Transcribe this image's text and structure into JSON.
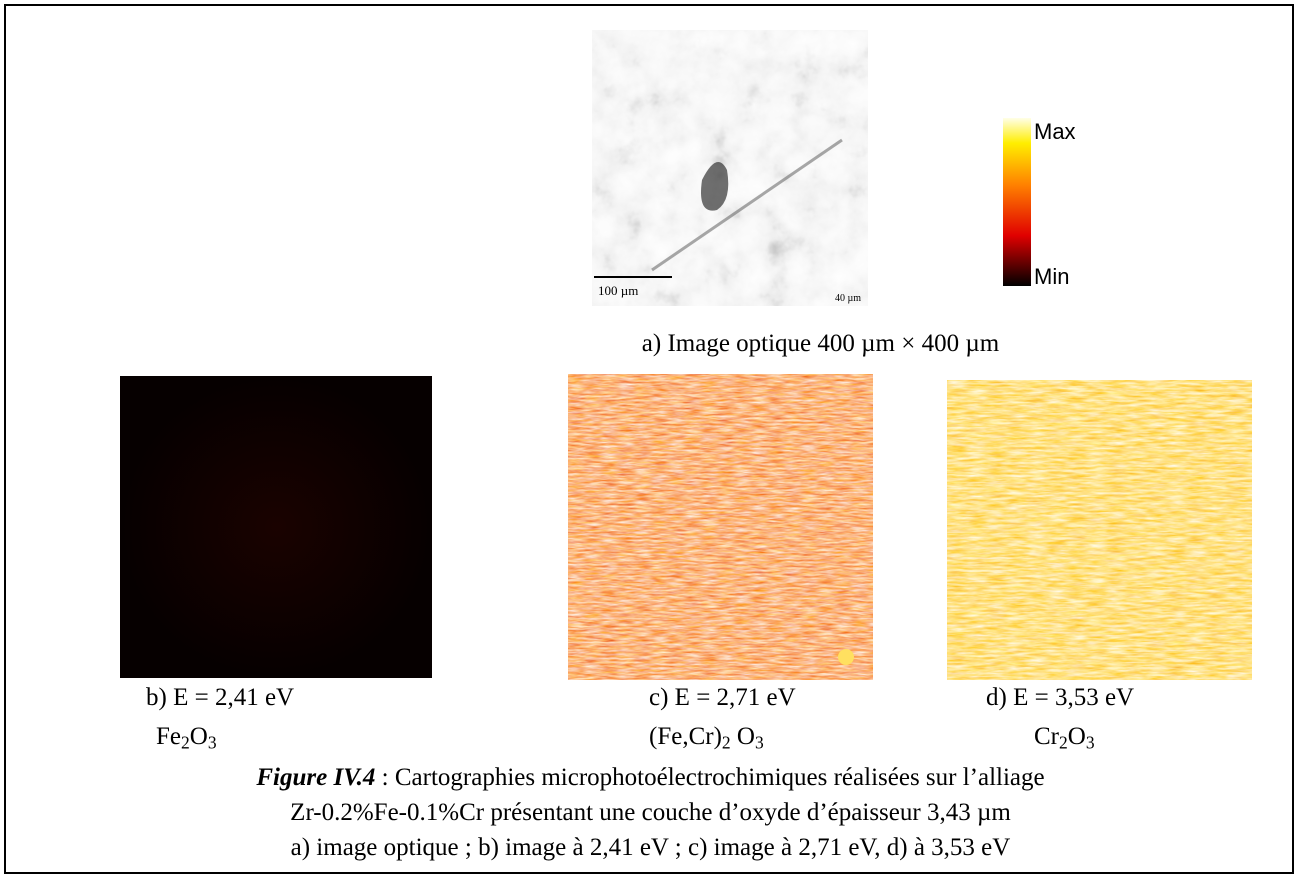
{
  "figure": {
    "optical": {
      "scale_bar_label": "100 µm",
      "corner_label": "40 µm",
      "caption": "a) Image optique 400 µm × 400 µm"
    },
    "colorbar": {
      "max_label": "Max",
      "min_label": "Min"
    },
    "panels": [
      {
        "label": "b) E = 2,41 eV",
        "formula": [
          "Fe",
          "2",
          "O",
          "3"
        ]
      },
      {
        "label": "c) E = 2,71 eV",
        "formula": [
          "(Fe,Cr)",
          "2",
          " O",
          "3"
        ]
      },
      {
        "label": "d) E = 3,53 eV",
        "formula": [
          "Cr",
          "2",
          "O",
          "3"
        ]
      }
    ],
    "caption": {
      "number": "Figure IV.4",
      "line1": " : Cartographies microphotoélectrochimiques réalisées sur l’alliage",
      "line2": "Zr-0.2%Fe-0.1%Cr présentant une couche d’oxyde d’épaisseur 3,43 µm",
      "line3": "a) image optique ; b) image à 2,41 eV ; c) image à 2,71 eV, d) à 3,53 eV"
    }
  }
}
